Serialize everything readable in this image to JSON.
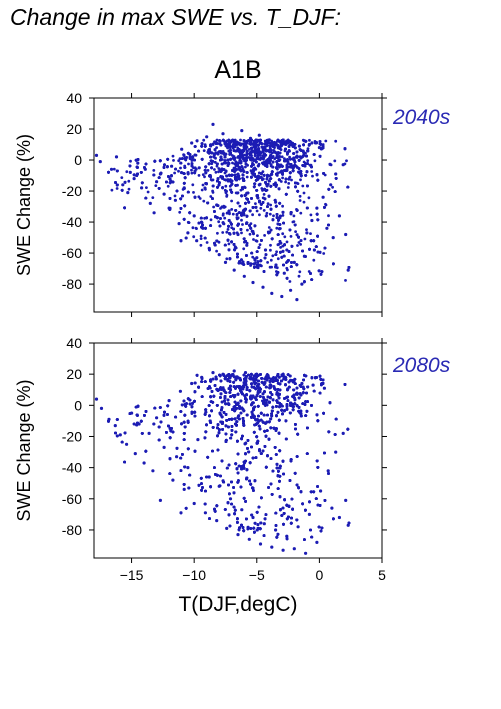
{
  "title": "Change in max SWE vs. T_DJF:",
  "subtitle": "A1B",
  "colors": {
    "points": "#1c1cb4",
    "label": "#2a2ab4",
    "axis": "#000000"
  },
  "chart_data": [
    {
      "type": "scatter",
      "panel_label": "2040s",
      "xlabel": "T(DJF,degC)",
      "ylabel": "SWE Change (%)",
      "xlim": [
        -18,
        5
      ],
      "ylim": [
        -98,
        40
      ],
      "x_ticks": [
        -15,
        -10,
        -5,
        0,
        5
      ],
      "y_ticks": [
        40,
        20,
        0,
        -20,
        -40,
        -60,
        -80
      ],
      "grid": false,
      "legend": "none",
      "note": "dense cloud of several thousand points",
      "points": [
        [
          -17.8,
          3
        ],
        [
          -17.5,
          -1
        ],
        [
          -16.6,
          -6
        ],
        [
          -16.2,
          2
        ],
        [
          -15.7,
          -16
        ],
        [
          -15.3,
          -21
        ],
        [
          -15.1,
          -8
        ],
        [
          -14.8,
          -12
        ],
        [
          -14.5,
          -2
        ],
        [
          -14.2,
          -18
        ],
        [
          -13.9,
          -6
        ],
        [
          -13.5,
          -28
        ],
        [
          -13.2,
          -34
        ],
        [
          -13.0,
          -14
        ],
        [
          -12.7,
          -9
        ],
        [
          -12.4,
          -22
        ],
        [
          -12.0,
          -31
        ],
        [
          -11.8,
          -4
        ],
        [
          -11.5,
          -26
        ],
        [
          -11.2,
          -41
        ],
        [
          -11.0,
          7
        ],
        [
          -10.8,
          -18
        ],
        [
          -10.5,
          -47
        ],
        [
          -10.2,
          11
        ],
        [
          -10.0,
          -36
        ],
        [
          -9.8,
          -52
        ],
        [
          -9.6,
          -5
        ],
        [
          -9.3,
          -44
        ],
        [
          -9.0,
          15
        ],
        [
          -8.8,
          -57
        ],
        [
          -8.5,
          23
        ],
        [
          -8.2,
          -29
        ],
        [
          -8.0,
          -61
        ],
        [
          -7.7,
          17
        ],
        [
          -7.5,
          -66
        ],
        [
          -7.2,
          -39
        ],
        [
          -7.0,
          12
        ],
        [
          -6.8,
          -71
        ],
        [
          -6.5,
          -48
        ],
        [
          -6.2,
          19
        ],
        [
          -6.0,
          -75
        ],
        [
          -5.8,
          -55
        ],
        [
          -5.5,
          14
        ],
        [
          -5.3,
          -79
        ],
        [
          -5.0,
          -63
        ],
        [
          -4.8,
          16
        ],
        [
          -4.5,
          -82
        ],
        [
          -4.3,
          -58
        ],
        [
          -4.0,
          13
        ],
        [
          -3.8,
          -86
        ],
        [
          -3.5,
          -69
        ],
        [
          -3.2,
          12
        ],
        [
          -3.0,
          -88
        ],
        [
          -2.8,
          -73
        ],
        [
          -2.5,
          11
        ],
        [
          -2.3,
          -84
        ],
        [
          -2.0,
          -66
        ],
        [
          -1.8,
          -90
        ],
        [
          -1.6,
          9
        ],
        [
          -1.4,
          -80
        ],
        [
          -1.2,
          -62
        ],
        [
          -1.0,
          -47
        ],
        [
          -0.8,
          10
        ],
        [
          -0.6,
          -39
        ],
        [
          -0.4,
          -58
        ],
        [
          -0.2,
          -31
        ],
        [
          0.0,
          8
        ],
        [
          0.3,
          -24
        ],
        [
          0.6,
          -44
        ],
        [
          0.9,
          -16
        ],
        [
          1.1,
          -50
        ],
        [
          1.3,
          -9
        ],
        [
          1.6,
          -36
        ],
        [
          1.9,
          -3
        ],
        [
          2.1,
          -48
        ],
        [
          2.3,
          -71
        ]
      ]
    },
    {
      "type": "scatter",
      "panel_label": "2080s",
      "xlabel": "T(DJF,degC)",
      "ylabel": "SWE Change (%)",
      "xlim": [
        -18,
        5
      ],
      "ylim": [
        -98,
        40
      ],
      "x_ticks": [
        -15,
        -10,
        -5,
        0,
        5
      ],
      "y_ticks": [
        40,
        20,
        0,
        -20,
        -40,
        -60,
        -80
      ],
      "grid": false,
      "legend": "none",
      "note": "dense cloud of several thousand points",
      "points": [
        [
          -17.8,
          4
        ],
        [
          -17.4,
          -2
        ],
        [
          -16.8,
          -9
        ],
        [
          -16.3,
          -13
        ],
        [
          -15.9,
          -19
        ],
        [
          -15.4,
          -25
        ],
        [
          -15.0,
          -5
        ],
        [
          -14.7,
          -31
        ],
        [
          -14.4,
          -12
        ],
        [
          -14.0,
          -37
        ],
        [
          -13.6,
          -18
        ],
        [
          -13.3,
          -42
        ],
        [
          -13.0,
          -8
        ],
        [
          -12.7,
          -61
        ],
        [
          -12.4,
          -27
        ],
        [
          -12.0,
          3
        ],
        [
          -11.7,
          -48
        ],
        [
          -11.4,
          -33
        ],
        [
          -11.1,
          9
        ],
        [
          -10.8,
          -54
        ],
        [
          -10.5,
          -40
        ],
        [
          -10.2,
          14
        ],
        [
          -10.0,
          -63
        ],
        [
          -9.7,
          -22
        ],
        [
          -9.4,
          18
        ],
        [
          -9.1,
          -69
        ],
        [
          -8.8,
          -46
        ],
        [
          -8.5,
          21
        ],
        [
          -8.2,
          -74
        ],
        [
          -8.0,
          -52
        ],
        [
          -7.7,
          20
        ],
        [
          -7.4,
          -79
        ],
        [
          -7.1,
          -60
        ],
        [
          -6.8,
          22
        ],
        [
          -6.5,
          -83
        ],
        [
          -6.2,
          -67
        ],
        [
          -5.9,
          21
        ],
        [
          -5.6,
          -86
        ],
        [
          -5.3,
          -72
        ],
        [
          -5.0,
          20
        ],
        [
          -4.7,
          -89
        ],
        [
          -4.4,
          -76
        ],
        [
          -4.1,
          19
        ],
        [
          -3.8,
          -91
        ],
        [
          -3.5,
          -80
        ],
        [
          -3.2,
          18
        ],
        [
          -2.9,
          -93
        ],
        [
          -2.6,
          -84
        ],
        [
          -2.3,
          16
        ],
        [
          -2.0,
          -92
        ],
        [
          -1.7,
          -78
        ],
        [
          -1.4,
          14
        ],
        [
          -1.1,
          -95
        ],
        [
          -0.8,
          -70
        ],
        [
          -0.5,
          13
        ],
        [
          -0.2,
          -88
        ],
        [
          0.1,
          -55
        ],
        [
          0.4,
          11
        ],
        [
          0.7,
          -42
        ],
        [
          1.0,
          -66
        ],
        [
          1.3,
          -30
        ],
        [
          1.6,
          -72
        ],
        [
          1.9,
          -18
        ],
        [
          2.1,
          -61
        ],
        [
          2.3,
          -77
        ]
      ]
    }
  ]
}
